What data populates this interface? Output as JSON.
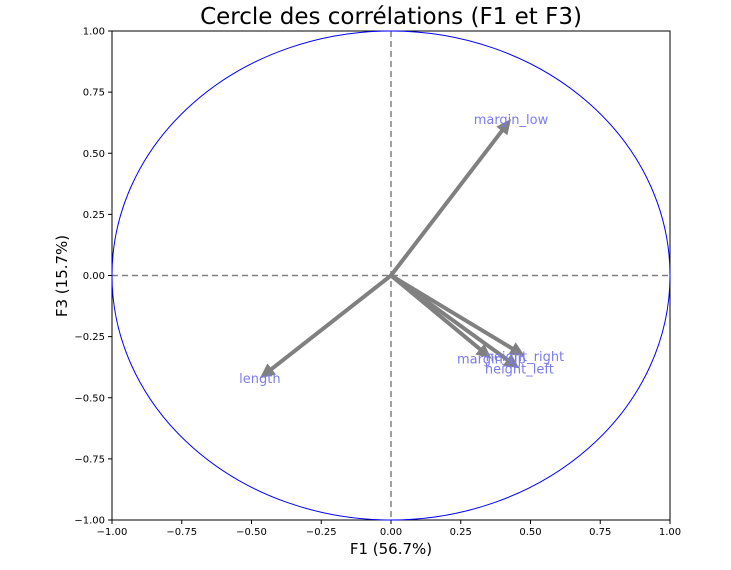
{
  "chart_data": {
    "type": "scatter",
    "title": "Cercle des corrélations (F1 et F3)",
    "xlabel": "F1 (56.7%)",
    "ylabel": "F3 (15.7%)",
    "xlim": [
      -1,
      1
    ],
    "ylim": [
      -1,
      1
    ],
    "x_ticks": [
      "−1.00",
      "−0.75",
      "−0.50",
      "−0.25",
      "0.00",
      "0.25",
      "0.50",
      "0.75",
      "1.00"
    ],
    "y_ticks": [
      "−1.00",
      "−0.75",
      "−0.50",
      "−0.25",
      "0.00",
      "0.25",
      "0.50",
      "0.75",
      "1.00"
    ],
    "grid": false,
    "circle_color": "#0000ff",
    "arrow_color": "#808080",
    "label_color": "#7b7bf0",
    "reference_lines": [
      {
        "axis": "x",
        "value": 0
      },
      {
        "axis": "y",
        "value": 0
      }
    ],
    "vectors": [
      {
        "label": "margin_low",
        "x": 0.43,
        "y": 0.64
      },
      {
        "label": "length",
        "x": -0.47,
        "y": -0.42
      },
      {
        "label": "margin_up",
        "x": 0.36,
        "y": -0.34
      },
      {
        "label": "height_right",
        "x": 0.48,
        "y": -0.33
      },
      {
        "label": "height_left",
        "x": 0.46,
        "y": -0.38
      }
    ]
  }
}
